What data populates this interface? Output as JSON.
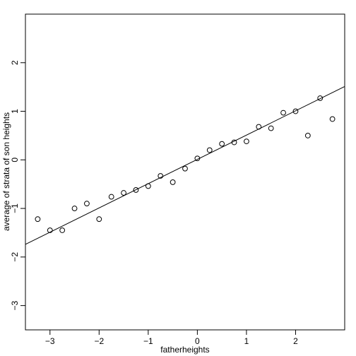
{
  "chart_data": {
    "type": "scatter",
    "title": "",
    "xlabel": "fatherheights",
    "ylabel": "average of strata of son heights",
    "xlim": [
      -3.5,
      3.0
    ],
    "ylim": [
      -3.5,
      3.0
    ],
    "xticks": [
      -3,
      -2,
      -1,
      0,
      1,
      2
    ],
    "yticks": [
      -3,
      -2,
      -1,
      0,
      1,
      2
    ],
    "grid": false,
    "points": [
      {
        "x": -3.25,
        "y": -1.22
      },
      {
        "x": -3.0,
        "y": -1.45
      },
      {
        "x": -2.75,
        "y": -1.45
      },
      {
        "x": -2.5,
        "y": -1.0
      },
      {
        "x": -2.25,
        "y": -0.9
      },
      {
        "x": -2.0,
        "y": -1.22
      },
      {
        "x": -1.75,
        "y": -0.76
      },
      {
        "x": -1.5,
        "y": -0.68
      },
      {
        "x": -1.25,
        "y": -0.62
      },
      {
        "x": -1.0,
        "y": -0.54
      },
      {
        "x": -0.75,
        "y": -0.33
      },
      {
        "x": -0.5,
        "y": -0.46
      },
      {
        "x": -0.25,
        "y": -0.18
      },
      {
        "x": 0.0,
        "y": 0.03
      },
      {
        "x": 0.25,
        "y": 0.2
      },
      {
        "x": 0.5,
        "y": 0.33
      },
      {
        "x": 0.75,
        "y": 0.36
      },
      {
        "x": 1.0,
        "y": 0.38
      },
      {
        "x": 1.25,
        "y": 0.68
      },
      {
        "x": 1.5,
        "y": 0.65
      },
      {
        "x": 1.75,
        "y": 0.97
      },
      {
        "x": 2.0,
        "y": 1.0
      },
      {
        "x": 2.25,
        "y": 0.5
      },
      {
        "x": 2.5,
        "y": 1.27
      },
      {
        "x": 2.75,
        "y": 0.84
      }
    ],
    "fit_line": {
      "intercept": 0.01,
      "slope": 0.5
    }
  }
}
